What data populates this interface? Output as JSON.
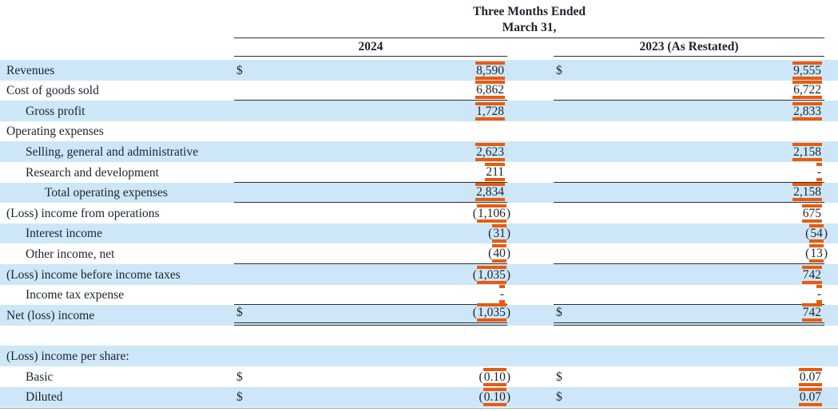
{
  "header": {
    "line1": "Three Months Ended",
    "line2": "March 31,",
    "col2024": "2024",
    "col2023": "2023 (As Restated)"
  },
  "colors": {
    "row_highlight": "#cde7f8",
    "change_mark_orange": "#e85b0d",
    "rule_black": "#2f2f2f"
  },
  "table": {
    "rows": [
      {
        "label": "Revenues",
        "indent": 0,
        "shaded": true,
        "rule": "none",
        "cols": [
          {
            "cur": "$",
            "val": "8,590"
          },
          {
            "cur": "$",
            "val": "9,555"
          }
        ]
      },
      {
        "label": "Cost of goods sold",
        "indent": 0,
        "shaded": false,
        "rule": "single",
        "cols": [
          {
            "val": "6,862"
          },
          {
            "val": "6,722"
          }
        ]
      },
      {
        "label": "Gross profit",
        "indent": 1,
        "shaded": true,
        "rule": "none",
        "cols": [
          {
            "val": "1,728"
          },
          {
            "val": "2,833"
          }
        ]
      },
      {
        "label": "Operating expenses",
        "indent": 0,
        "shaded": false,
        "rule": "none",
        "cols": [
          null,
          null
        ]
      },
      {
        "label": "Selling, general and administrative",
        "indent": 1,
        "shaded": true,
        "rule": "none",
        "cols": [
          {
            "val": "2,623"
          },
          {
            "val": "2,158"
          }
        ]
      },
      {
        "label": "Research and development",
        "indent": 1,
        "shaded": false,
        "rule": "single",
        "cols": [
          {
            "val": "211"
          },
          {
            "val": "-"
          }
        ]
      },
      {
        "label": "Total operating expenses",
        "indent": 2,
        "shaded": true,
        "rule": "single",
        "cols": [
          {
            "val": "2,834"
          },
          {
            "val": "2,158"
          }
        ]
      },
      {
        "label": "(Loss) income from operations",
        "indent": 0,
        "shaded": false,
        "rule": "none",
        "cols": [
          {
            "val": "(1,106)"
          },
          {
            "val": "675"
          }
        ]
      },
      {
        "label": "Interest income",
        "indent": 1,
        "shaded": true,
        "rule": "none",
        "cols": [
          {
            "val": "(31)"
          },
          {
            "val": "(54)"
          }
        ]
      },
      {
        "label": "Other income, net",
        "indent": 1,
        "shaded": false,
        "rule": "single",
        "cols": [
          {
            "val": "(40)"
          },
          {
            "val": "(13)"
          }
        ]
      },
      {
        "label": "(Loss) income before income taxes",
        "indent": 0,
        "shaded": true,
        "rule": "none",
        "cols": [
          {
            "val": "(1,035)"
          },
          {
            "val": "742"
          }
        ]
      },
      {
        "label": "Income tax expense",
        "indent": 1,
        "shaded": false,
        "rule": "single",
        "cols": [
          {
            "val": "-"
          },
          {
            "val": "-"
          }
        ]
      },
      {
        "label": "Net (loss) income",
        "indent": 0,
        "shaded": true,
        "rule": "double",
        "cols": [
          {
            "cur": "$",
            "val": "(1,035)"
          },
          {
            "cur": "$",
            "val": "742"
          }
        ]
      },
      {
        "type": "spacer"
      },
      {
        "label": "(Loss) income per share:",
        "indent": 0,
        "shaded": true,
        "rule": "none",
        "cols": [
          null,
          null
        ]
      },
      {
        "label": "Basic",
        "indent": 1,
        "shaded": false,
        "rule": "none",
        "cols": [
          {
            "cur": "$",
            "val": "(0.10)"
          },
          {
            "cur": "$",
            "val": "0.07"
          }
        ]
      },
      {
        "label": "Diluted",
        "indent": 1,
        "shaded": true,
        "rule": "none",
        "cols": [
          {
            "cur": "$",
            "val": "(0.10)"
          },
          {
            "cur": "$",
            "val": "0.07"
          }
        ]
      }
    ]
  }
}
